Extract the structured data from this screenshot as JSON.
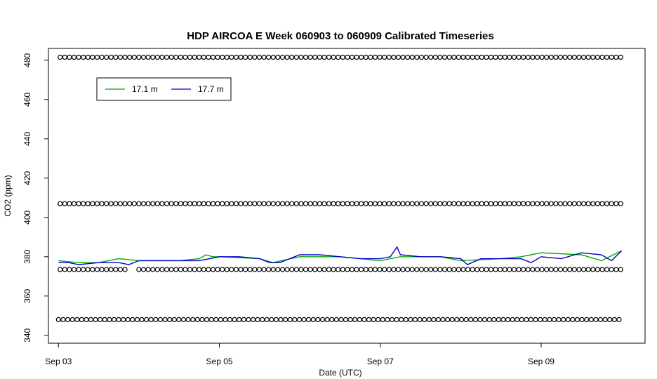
{
  "chart_data": {
    "type": "line",
    "title": "HDP AIRCOA E  Week 060903 to 060909  Calibrated Timeseries",
    "xlabel": "Date (UTC)",
    "ylabel": "CO2 (ppm)",
    "x_ticks": [
      "Sep 03",
      "Sep 05",
      "Sep 07",
      "Sep 09"
    ],
    "y_ticks": [
      340,
      360,
      380,
      400,
      420,
      440,
      460,
      480
    ],
    "xlim": [
      "2006-09-02T21:00",
      "2006-09-10T07:00"
    ],
    "ylim": [
      336,
      486
    ],
    "grid": false,
    "legend": {
      "position": "top-left",
      "entries": [
        {
          "name": "17.1 m",
          "color": "#00aa00"
        },
        {
          "name": "17.7 m",
          "color": "#0000cc"
        }
      ]
    },
    "calibration_levels": [
      {
        "y": 481.5,
        "x_start": "2006-09-03T00:30",
        "x_end": "2006-09-10T00:00"
      },
      {
        "y": 407.0,
        "x_start": "2006-09-03T00:30",
        "x_end": "2006-09-10T00:00"
      },
      {
        "y": 373.5,
        "x_start": "2006-09-03T00:30",
        "x_end": "2006-09-10T00:00",
        "gap": [
          "2006-09-03T21:00",
          "2006-09-03T23:30"
        ]
      },
      {
        "y": 348.0,
        "x_start": "2006-09-03T00:00",
        "x_end": "2006-09-10T00:00"
      }
    ],
    "series": [
      {
        "name": "17.1 m",
        "color": "#00aa00",
        "x": [
          "2006-09-03T00:00",
          "2006-09-03T06:00",
          "2006-09-03T12:00",
          "2006-09-03T18:00",
          "2006-09-04T00:00",
          "2006-09-04T12:00",
          "2006-09-04T18:00",
          "2006-09-04T20:00",
          "2006-09-04T22:00",
          "2006-09-05T00:00",
          "2006-09-05T12:00",
          "2006-09-05T16:00",
          "2006-09-06T00:00",
          "2006-09-06T12:00",
          "2006-09-07T00:00",
          "2006-09-07T06:00",
          "2006-09-07T18:00",
          "2006-09-08T00:00",
          "2006-09-08T12:00",
          "2006-09-08T18:00",
          "2006-09-09T00:00",
          "2006-09-09T12:00",
          "2006-09-09T18:00",
          "2006-09-10T00:00"
        ],
        "values": [
          378,
          377,
          377,
          379,
          378,
          378,
          379,
          381,
          380,
          380,
          379,
          377,
          380,
          380,
          378,
          380,
          380,
          378,
          379,
          380,
          382,
          381,
          378,
          383
        ]
      },
      {
        "name": "17.7 m",
        "color": "#0000cc",
        "x": [
          "2006-09-03T00:00",
          "2006-09-03T03:00",
          "2006-09-03T06:00",
          "2006-09-03T12:00",
          "2006-09-03T18:00",
          "2006-09-03T21:00",
          "2006-09-04T00:00",
          "2006-09-04T06:00",
          "2006-09-04T12:00",
          "2006-09-04T18:00",
          "2006-09-05T00:00",
          "2006-09-05T06:00",
          "2006-09-05T12:00",
          "2006-09-05T15:00",
          "2006-09-05T18:00",
          "2006-09-06T00:00",
          "2006-09-06T06:00",
          "2006-09-06T12:00",
          "2006-09-06T18:00",
          "2006-09-07T00:00",
          "2006-09-07T03:00",
          "2006-09-07T05:00",
          "2006-09-07T06:00",
          "2006-09-07T12:00",
          "2006-09-07T18:00",
          "2006-09-08T00:00",
          "2006-09-08T02:00",
          "2006-09-08T06:00",
          "2006-09-08T12:00",
          "2006-09-08T18:00",
          "2006-09-08T21:00",
          "2006-09-09T00:00",
          "2006-09-09T06:00",
          "2006-09-09T12:00",
          "2006-09-09T18:00",
          "2006-09-09T21:00",
          "2006-09-10T00:00"
        ],
        "values": [
          377,
          377,
          376,
          377,
          377,
          376,
          378,
          378,
          378,
          378,
          380,
          380,
          379,
          377,
          377,
          381,
          381,
          380,
          379,
          379,
          380,
          385,
          381,
          380,
          380,
          379,
          376,
          379,
          379,
          379,
          377,
          380,
          379,
          382,
          381,
          378,
          383
        ]
      }
    ]
  }
}
